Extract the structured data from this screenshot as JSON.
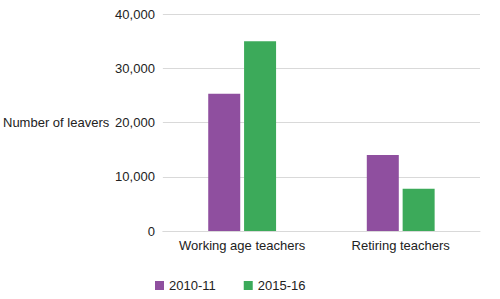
{
  "chart_data": {
    "type": "bar",
    "categories": [
      "Working age teachers",
      "Retiring teachers"
    ],
    "series": [
      {
        "name": "2010-11",
        "color": "#8f4f9f",
        "values": [
          25300,
          14000
        ]
      },
      {
        "name": "2015-16",
        "color": "#3caa5a",
        "values": [
          35000,
          7800
        ]
      }
    ],
    "y_label": "Number of leavers",
    "ylim": [
      0,
      40000
    ],
    "yticks": [
      0,
      {
        "value": 10000,
        "label": "10,000"
      },
      {
        "value": 20000,
        "label": "20,000"
      },
      {
        "value": 30000,
        "label": "30,000"
      },
      {
        "value": 40000,
        "label": "40,000"
      }
    ],
    "grid": true,
    "legend": "bottom"
  }
}
